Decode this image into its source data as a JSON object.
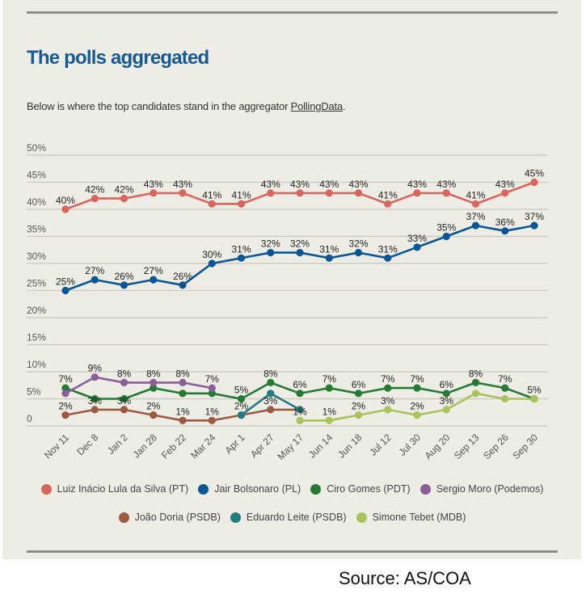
{
  "header": {
    "title": "The polls aggregated",
    "subtitle_prefix": "Below is where the top candidates stand in the aggregator ",
    "subtitle_link": "PollingData",
    "subtitle_suffix": "."
  },
  "source": "Source:  AS/COA",
  "chart_data": {
    "type": "line",
    "title": "The polls aggregated",
    "xlabel": "",
    "ylabel": "",
    "ylim": [
      0,
      50
    ],
    "grid": true,
    "legend_position": "bottom",
    "y_ticks": [
      0,
      5,
      10,
      15,
      20,
      25,
      30,
      35,
      40,
      45,
      50
    ],
    "y_tick_labels": [
      "0",
      "5%",
      "10%",
      "15%",
      "20%",
      "25%",
      "30%",
      "35%",
      "40%",
      "45%",
      "50%"
    ],
    "categories": [
      "Nov 11",
      "Dec 8",
      "Jan 2",
      "Jan 28",
      "Feb 22",
      "Mar 24",
      "Apr 1",
      "Apr 27",
      "May 17",
      "Jun 14",
      "Jun 18",
      "Jul 12",
      "Jul 30",
      "Aug 20",
      "Sep 13",
      "Sep 26",
      "Sep 30"
    ],
    "series": [
      {
        "name": "Luiz Inácio Lula da Silva (PT)",
        "color": "#d9655c",
        "values": [
          40,
          42,
          42,
          43,
          43,
          41,
          41,
          43,
          43,
          43,
          43,
          41,
          43,
          43,
          41,
          43,
          45
        ],
        "labels": [
          "40%",
          "42%",
          "42%",
          "43%",
          "43%",
          "41%",
          "41%",
          "43%",
          "43%",
          "43%",
          "43%",
          "41%",
          "43%",
          "43%",
          "41%",
          "43%",
          "45%"
        ]
      },
      {
        "name": "Jair Bolsonaro (PL)",
        "color": "#0b5796",
        "values": [
          25,
          27,
          26,
          27,
          26,
          30,
          31,
          32,
          32,
          31,
          32,
          31,
          33,
          35,
          37,
          36,
          37
        ],
        "labels": [
          "25%",
          "27%",
          "26%",
          "27%",
          "26%",
          "30%",
          "31%",
          "32%",
          "32%",
          "31%",
          "32%",
          "31%",
          "33%",
          "35%",
          "37%",
          "36%",
          "37%"
        ]
      },
      {
        "name": "Ciro Gomes (PDT)",
        "color": "#257a34",
        "values": [
          7,
          5,
          5,
          7,
          6,
          6,
          5,
          8,
          6,
          7,
          6,
          7,
          7,
          6,
          8,
          7,
          5
        ],
        "labels": [
          "7%",
          null,
          null,
          null,
          null,
          null,
          "5%",
          "8%",
          "6%",
          "7%",
          "6%",
          "7%",
          "7%",
          "6%",
          "8%",
          "7%",
          "5%"
        ]
      },
      {
        "name": "Sergio Moro (Podemos)",
        "color": "#8c5e99",
        "values": [
          6,
          9,
          8,
          8,
          8,
          7,
          null,
          null,
          null,
          null,
          null,
          null,
          null,
          null,
          null,
          null,
          null
        ],
        "labels": [
          null,
          "9%",
          "8%",
          "8%",
          "8%",
          "7%",
          null,
          null,
          null,
          null,
          null,
          null,
          null,
          null,
          null,
          null,
          null
        ]
      },
      {
        "name": "João Doria (PSDB)",
        "color": "#9d5a42",
        "values": [
          2,
          3,
          3,
          2,
          1,
          1,
          2,
          3,
          3,
          null,
          null,
          null,
          null,
          null,
          null,
          null,
          null
        ],
        "labels": [
          "2%",
          "3%",
          "3%",
          "2%",
          "1%",
          "1%",
          null,
          "3%",
          null,
          null,
          null,
          null,
          null,
          null,
          null,
          null,
          null
        ]
      },
      {
        "name": "Eduardo Leite (PSDB)",
        "color": "#237b80",
        "values": [
          null,
          null,
          null,
          null,
          null,
          null,
          2,
          6,
          3,
          null,
          null,
          null,
          null,
          null,
          null,
          null,
          null
        ],
        "labels": [
          null,
          null,
          null,
          null,
          null,
          null,
          "2%",
          null,
          null,
          null,
          null,
          null,
          null,
          null,
          null,
          null,
          null
        ]
      },
      {
        "name": "Simone Tebet (MDB)",
        "color": "#a8c35a",
        "values": [
          null,
          null,
          null,
          null,
          null,
          null,
          null,
          null,
          1,
          1,
          2,
          3,
          2,
          3,
          6,
          5,
          5
        ],
        "labels": [
          null,
          null,
          null,
          null,
          null,
          null,
          null,
          null,
          "1%",
          "1%",
          "2%",
          "3%",
          "2%",
          "3%",
          null,
          null,
          null
        ]
      }
    ]
  }
}
